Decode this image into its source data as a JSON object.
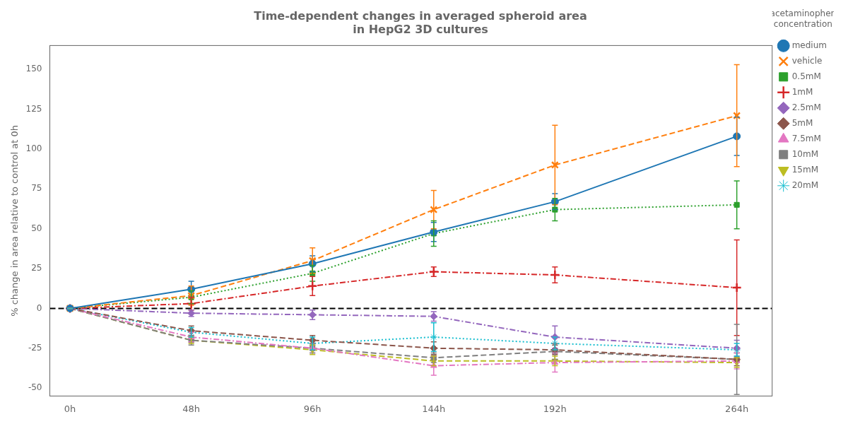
{
  "chart_data": {
    "type": "line",
    "title": "Time-dependent changes in averaged spheroid area\nin HepG2 3D cultures",
    "y_label": "% change in area relative to control at 0h",
    "x": [
      0,
      48,
      96,
      144,
      192,
      264
    ],
    "xlim": [
      -8,
      278
    ],
    "xticks": [
      {
        "value": 0,
        "label": "0h"
      },
      {
        "value": 48,
        "label": "48h"
      },
      {
        "value": 96,
        "label": "96h"
      },
      {
        "value": 144,
        "label": "144h"
      },
      {
        "value": 192,
        "label": "192h"
      },
      {
        "value": 264,
        "label": "264h"
      }
    ],
    "ylim": [
      -55,
      165
    ],
    "yticks": [
      -50,
      -25,
      0,
      25,
      50,
      75,
      100,
      125,
      150
    ],
    "grid": false,
    "legend": "right",
    "legend_title": "acetaminophen\nconcentration",
    "hlines": [
      {
        "y": 0,
        "color": "black",
        "line_style": "dashed"
      }
    ],
    "series": [
      {
        "name": "medium",
        "color": "#1f77b4",
        "line_style": "solid",
        "marker": "circle",
        "values": [
          0,
          12,
          28,
          48,
          67,
          108
        ],
        "errors": [
          0,
          5,
          5,
          6,
          5,
          12
        ]
      },
      {
        "name": "vehicle",
        "color": "#ff7f0e",
        "line_style": "dashed",
        "marker": "x",
        "values": [
          0,
          8,
          30,
          62,
          90,
          121
        ],
        "errors": [
          0,
          6,
          8,
          12,
          25,
          32
        ]
      },
      {
        "name": "0.5mM",
        "color": "#2ca02c",
        "line_style": "dotted",
        "marker": "square",
        "values": [
          0,
          7,
          22,
          47,
          62,
          65
        ],
        "errors": [
          0,
          4,
          5,
          8,
          7,
          15
        ]
      },
      {
        "name": "1mM",
        "color": "#d62728",
        "line_style": "dashdot",
        "marker": "plus",
        "values": [
          0,
          3,
          14,
          23,
          21,
          13
        ],
        "errors": [
          0,
          4,
          6,
          3,
          5,
          30
        ]
      },
      {
        "name": "2.5mM",
        "color": "#9467bd",
        "line_style": "dashdot",
        "marker": "diamond",
        "values": [
          0,
          -3,
          -4,
          -5,
          -18,
          -25
        ],
        "errors": [
          0,
          2,
          3,
          3,
          7,
          5
        ]
      },
      {
        "name": "5mM",
        "color": "#8c564b",
        "line_style": "dashed",
        "marker": "diamond",
        "values": [
          0,
          -14,
          -20,
          -25,
          -26,
          -32
        ],
        "errors": [
          0,
          3,
          3,
          4,
          3,
          4
        ]
      },
      {
        "name": "7.5mM",
        "color": "#e377c2",
        "line_style": "dashdot",
        "marker": "triangle_up",
        "values": [
          0,
          -18,
          -25,
          -36,
          -34,
          -33
        ],
        "errors": [
          0,
          3,
          3,
          6,
          6,
          5
        ]
      },
      {
        "name": "10mM",
        "color": "#7f7f7f",
        "line_style": "dashed",
        "marker": "square",
        "values": [
          0,
          -20,
          -25,
          -31,
          -27,
          -32
        ],
        "errors": [
          0,
          3,
          3,
          3,
          5,
          22
        ]
      },
      {
        "name": "15mM",
        "color": "#bcbd22",
        "line_style": "dashed",
        "marker": "triangle_down",
        "values": [
          0,
          -20,
          -26,
          -33,
          -33,
          -34
        ],
        "errors": [
          0,
          2,
          3,
          3,
          3,
          3
        ]
      },
      {
        "name": "20mM",
        "color": "#17becf",
        "line_style": "dotted",
        "marker": "star",
        "values": [
          0,
          -15,
          -22,
          -18,
          -22,
          -26
        ],
        "errors": [
          0,
          3,
          4,
          9,
          4,
          4
        ]
      }
    ]
  }
}
